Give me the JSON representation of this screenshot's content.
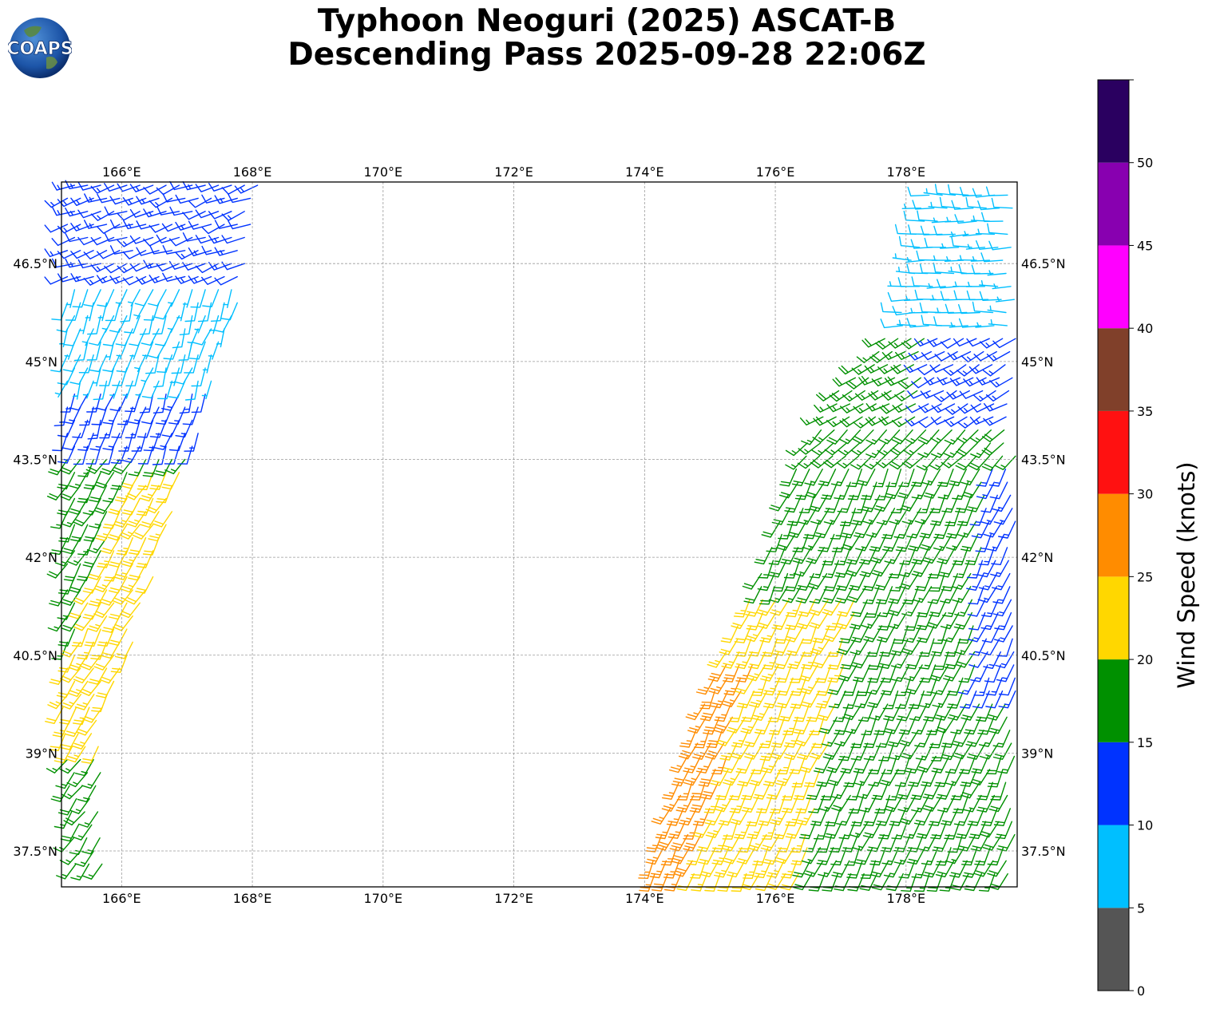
{
  "title_line1": "Typhoon Neoguri (2025) ASCAT-B",
  "title_line2": "Descending Pass 2025-09-28 22:06Z",
  "logo_text": "COAPS",
  "map": {
    "lon_range": [
      165.08,
      179.7
    ],
    "lat_range": [
      36.95,
      47.75
    ],
    "lon_ticks": [
      {
        "value": 166,
        "label": "166°E"
      },
      {
        "value": 168,
        "label": "168°E"
      },
      {
        "value": 170,
        "label": "170°E"
      },
      {
        "value": 172,
        "label": "172°E"
      },
      {
        "value": 174,
        "label": "174°E"
      },
      {
        "value": 176,
        "label": "176°E"
      },
      {
        "value": 178,
        "label": "178°E"
      }
    ],
    "lat_ticks": [
      {
        "value": 37.5,
        "label": "37.5°N"
      },
      {
        "value": 39,
        "label": "39°N"
      },
      {
        "value": 40.5,
        "label": "40.5°N"
      },
      {
        "value": 42,
        "label": "42°N"
      },
      {
        "value": 43.5,
        "label": "43.5°N"
      },
      {
        "value": 45,
        "label": "45°N"
      },
      {
        "value": 46.5,
        "label": "46.5°N"
      }
    ],
    "gridlines": true
  },
  "colorbar": {
    "label": "Wind Speed (knots)",
    "bins": [
      {
        "min": 0,
        "max": 5,
        "color": "#555555"
      },
      {
        "min": 5,
        "max": 10,
        "color": "#00bfff"
      },
      {
        "min": 10,
        "max": 15,
        "color": "#0033ff"
      },
      {
        "min": 15,
        "max": 20,
        "color": "#009000"
      },
      {
        "min": 20,
        "max": 25,
        "color": "#ffd700"
      },
      {
        "min": 25,
        "max": 30,
        "color": "#ff8c00"
      },
      {
        "min": 30,
        "max": 35,
        "color": "#ff1111"
      },
      {
        "min": 35,
        "max": 40,
        "color": "#80402a"
      },
      {
        "min": 40,
        "max": 45,
        "color": "#ff00ff"
      },
      {
        "min": 45,
        "max": 50,
        "color": "#8800b0"
      },
      {
        "min": 50,
        "max": 55,
        "color": "#2a0060"
      }
    ],
    "ticks": [
      {
        "value": 0,
        "label": "0"
      },
      {
        "value": 5,
        "label": "5"
      },
      {
        "value": 10,
        "label": "10"
      },
      {
        "value": 15,
        "label": "15"
      },
      {
        "value": 20,
        "label": "20"
      },
      {
        "value": 25,
        "label": "25"
      },
      {
        "value": 30,
        "label": "30"
      },
      {
        "value": 35,
        "label": "35"
      },
      {
        "value": 40,
        "label": "40"
      },
      {
        "value": 45,
        "label": "45"
      },
      {
        "value": 50,
        "label": "50"
      }
    ],
    "range": [
      0,
      55
    ]
  },
  "wind_swaths": [
    {
      "name": "west",
      "note": "ascat swath west",
      "lat_min": 37.3,
      "lat_max": 47.75,
      "west_edge": [
        [
          37.3,
          165.3
        ],
        [
          40.0,
          165.08
        ],
        [
          47.75,
          165.08
        ]
      ],
      "east_edge": [
        [
          39.2,
          165.7
        ],
        [
          43.0,
          166.9
        ],
        [
          46.0,
          167.8
        ],
        [
          47.75,
          168.1
        ]
      ],
      "zones": [
        {
          "lat_min": 46.2,
          "lat_max": 47.75,
          "speed": 12,
          "dir": 250
        },
        {
          "lat_min": 44.6,
          "lat_max": 46.6,
          "speed": 8,
          "dir": 200
        },
        {
          "lat_min": 43.6,
          "lat_max": 45.2,
          "speed": 13,
          "dir": 200
        },
        {
          "lat_min": 39.0,
          "lat_max": 43.8,
          "speed": 18,
          "dir": 210
        },
        {
          "lat_min": 37.3,
          "lat_max": 39.2,
          "speed": 17,
          "dir": 215
        }
      ]
    },
    {
      "name": "east",
      "lat_min": 36.95,
      "lat_max": 47.75,
      "west_edge": [
        [
          36.95,
          174.0
        ],
        [
          40.0,
          175.0
        ],
        [
          42.0,
          175.9
        ],
        [
          43.6,
          176.4
        ],
        [
          44.6,
          177.0
        ],
        [
          45.6,
          177.9
        ],
        [
          47.75,
          178.3
        ]
      ],
      "east_edge": [
        [
          36.95,
          179.7
        ],
        [
          47.75,
          179.7
        ]
      ]
    }
  ]
}
